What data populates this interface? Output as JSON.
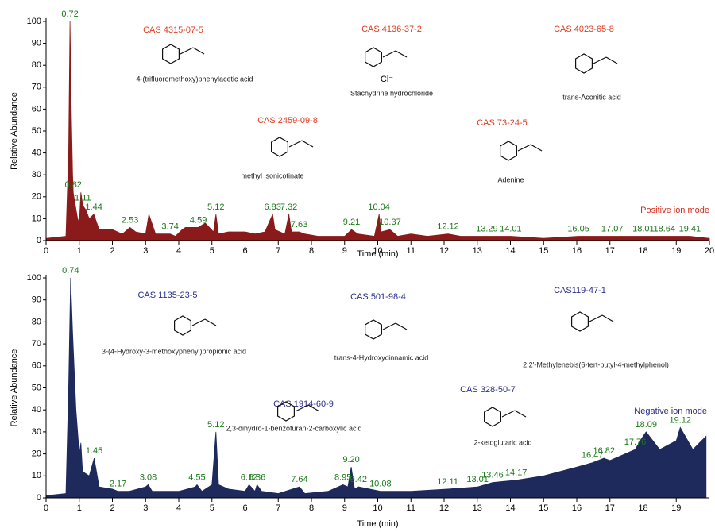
{
  "chart_data": [
    {
      "type": "area",
      "xlabel": "Time (min)",
      "ylabel": "Relative Abundance",
      "mode_label": "Positive ion mode",
      "color": "#8b1a1a",
      "label_color": "#d62a1a",
      "cas_color": "#e03c1e",
      "xlim": [
        0,
        20
      ],
      "xticks": [
        0,
        1,
        2,
        3,
        4,
        5,
        6,
        7,
        8,
        9,
        10,
        11,
        12,
        13,
        14,
        15,
        16,
        17,
        18,
        19,
        20
      ],
      "ylim": [
        0,
        100
      ],
      "yticks": [
        0,
        10,
        20,
        30,
        40,
        50,
        60,
        70,
        80,
        90,
        100
      ],
      "x": [
        0,
        0.6,
        0.68,
        0.72,
        0.76,
        0.8,
        0.82,
        0.86,
        0.95,
        1.0,
        1.05,
        1.11,
        1.2,
        1.3,
        1.44,
        1.6,
        2.0,
        2.3,
        2.53,
        2.7,
        3.0,
        3.1,
        3.3,
        3.74,
        3.9,
        4.1,
        4.2,
        4.59,
        4.8,
        5.05,
        5.12,
        5.2,
        5.5,
        6.0,
        6.3,
        6.6,
        6.83,
        6.9,
        7.2,
        7.32,
        7.4,
        7.63,
        7.8,
        8.2,
        8.7,
        9.0,
        9.21,
        9.4,
        9.9,
        10.04,
        10.1,
        10.37,
        10.6,
        11.0,
        11.5,
        12.12,
        12.5,
        13.29,
        14.01,
        15.0,
        16.05,
        17.07,
        18.01,
        18.64,
        19.41,
        20
      ],
      "values": [
        1,
        2,
        40,
        100,
        60,
        30,
        22,
        18,
        10,
        8,
        22,
        16,
        14,
        10,
        12,
        5,
        5,
        3,
        6,
        4,
        3,
        12,
        3,
        3,
        2,
        5,
        6,
        6,
        8,
        4,
        12,
        3,
        4,
        4,
        3,
        4,
        12,
        5,
        3,
        12,
        4,
        4,
        3,
        2,
        2,
        2,
        5,
        3,
        2,
        12,
        4,
        5,
        2,
        3,
        2,
        3,
        2,
        2,
        2,
        1,
        2,
        2,
        2,
        2,
        2,
        1
      ],
      "peak_labels": [
        0.72,
        0.82,
        1.11,
        1.44,
        2.53,
        3.74,
        4.59,
        5.12,
        6.83,
        7.32,
        7.63,
        9.21,
        10.04,
        10.37,
        12.12,
        13.29,
        14.01,
        16.05,
        17.07,
        18.01,
        18.64,
        19.41
      ],
      "compounds": [
        {
          "cas": "CAS 4315-07-5",
          "name": "4-(trifluoromethoxy)phenylacetic acid"
        },
        {
          "cas": "CAS 4136-37-2",
          "name": "Stachydrine hydrochloride",
          "counterion": "Cl⁻"
        },
        {
          "cas": "CAS 4023-65-8",
          "name": "trans-Aconitic acid"
        },
        {
          "cas": "CAS 2459-09-8",
          "name": "methyl isonicotinate"
        },
        {
          "cas": "CAS 73-24-5",
          "name": "Adenine"
        }
      ]
    },
    {
      "type": "area",
      "xlabel": "Time (min)",
      "ylabel": "Relative Abundance",
      "mode_label": "Negative ion mode",
      "color": "#1f2a5c",
      "label_color": "#262d7a",
      "cas_color": "#2a2f8a",
      "xlim": [
        0,
        20
      ],
      "xticks": [
        0,
        1,
        2,
        3,
        4,
        5,
        6,
        7,
        8,
        9,
        10,
        11,
        12,
        13,
        14,
        15,
        16,
        17,
        18,
        19
      ],
      "ylim": [
        0,
        100
      ],
      "yticks": [
        0,
        10,
        20,
        30,
        40,
        50,
        60,
        70,
        80,
        90,
        100
      ],
      "x": [
        0,
        0.6,
        0.68,
        0.74,
        0.8,
        0.9,
        1.0,
        1.05,
        1.1,
        1.3,
        1.45,
        1.6,
        2.0,
        2.17,
        2.5,
        3.0,
        3.08,
        3.2,
        4.0,
        4.5,
        4.55,
        4.7,
        5.0,
        5.12,
        5.2,
        5.5,
        6.0,
        6.12,
        6.3,
        6.36,
        6.5,
        7.0,
        7.64,
        7.8,
        8.5,
        8.95,
        9.1,
        9.2,
        9.3,
        9.42,
        10.08,
        11.0,
        12.11,
        13.01,
        13.46,
        14.17,
        15.0,
        16.0,
        16.47,
        16.82,
        17.0,
        17.76,
        18.0,
        18.09,
        18.5,
        19.0,
        19.12,
        19.5,
        19.9
      ],
      "values": [
        1,
        2,
        50,
        100,
        75,
        40,
        20,
        25,
        12,
        10,
        18,
        5,
        4,
        3,
        3,
        5,
        6,
        3,
        3,
        5,
        6,
        3,
        6,
        30,
        6,
        4,
        3,
        6,
        3,
        6,
        3,
        2,
        5,
        2,
        3,
        6,
        5,
        14,
        4,
        5,
        3,
        3,
        4,
        5,
        7,
        8,
        10,
        14,
        16,
        18,
        17,
        22,
        28,
        30,
        22,
        26,
        32,
        22,
        28
      ],
      "peak_labels": [
        0.74,
        1.45,
        2.17,
        3.08,
        4.55,
        5.12,
        6.12,
        6.36,
        7.64,
        8.95,
        {
          "value": 9.2,
          "label": "9.20"
        },
        9.42,
        10.08,
        12.11,
        13.01,
        13.46,
        14.17,
        16.47,
        16.82,
        17.76,
        18.09,
        19.12
      ],
      "compounds": [
        {
          "cas": "CAS 1135-23-5",
          "name": "3-(4-Hydroxy-3-methoxyphenyl)propionic acid"
        },
        {
          "cas": "CAS 501-98-4",
          "name": "trans-4-Hydroxycinnamic acid"
        },
        {
          "cas": "CAS119-47-1",
          "name": "2,2'-Methylenebis(6-tert-butyl-4-methylphenol)"
        },
        {
          "cas": "CAS 1914-60-9",
          "name": "2,3-dihydro-1-benzofuran-2-carboxylic acid"
        },
        {
          "cas": "CAS 328-50-7",
          "name": "2-ketoglutaric acid"
        }
      ]
    }
  ]
}
